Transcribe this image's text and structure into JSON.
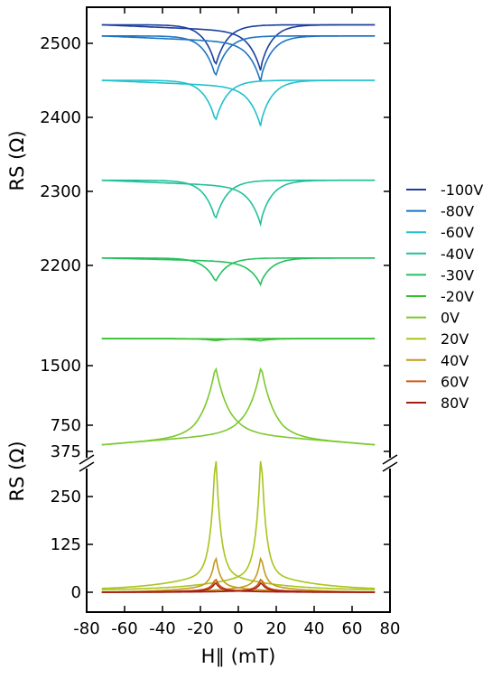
{
  "chart_data": {
    "type": "line",
    "xlabel": "H∥ (mT)",
    "xlim": [
      -80,
      80
    ],
    "x_ticks": [
      "-80",
      "-60",
      "-40",
      "-20",
      "0",
      "20",
      "40",
      "60",
      "80"
    ],
    "top_panel": {
      "ylabel": "RS (Ω)",
      "upper_segment": {
        "ylim": [
          2150,
          2550
        ],
        "ticks": [
          "2200",
          "2300",
          "2400",
          "2500"
        ]
      },
      "lower_segment": {
        "ylim": [
          375,
          1850
        ],
        "ticks": [
          "375",
          "750",
          "1500"
        ]
      }
    },
    "bottom_panel": {
      "ylabel": "RS (Ω)",
      "ylim": [
        -25,
        375
      ],
      "ticks": [
        "0",
        "125",
        "250"
      ]
    },
    "legend_position": "right",
    "series": [
      {
        "name": "-100V",
        "color": "#1c3f9e",
        "segment": "upper",
        "base": 2525,
        "min": 2470,
        "gap": 0
      },
      {
        "name": "-80V",
        "color": "#1f74c2",
        "segment": "upper",
        "base": 2510,
        "min": 2455,
        "gap": 0
      },
      {
        "name": "-60V",
        "color": "#22c0cc",
        "segment": "upper",
        "base": 2450,
        "min": 2395,
        "gap": 0
      },
      {
        "name": "-40V",
        "color": "#22c09a",
        "segment": "upper",
        "base": 2315,
        "min": 2262,
        "gap": 0
      },
      {
        "name": "-30V",
        "color": "#25c05e",
        "segment": "upper",
        "base": 2210,
        "min": 2178,
        "gap": 0
      },
      {
        "name": "-20V",
        "color": "#33bf2f",
        "segment": "lower",
        "base": 1840,
        "min": 1815,
        "gap": 0
      },
      {
        "name": "0V",
        "color": "#7bc92d",
        "segment": "lower",
        "base": 560,
        "min": 1510,
        "gap": 0
      },
      {
        "name": "20V",
        "color": "#a9c41c",
        "segment": "bottom",
        "base": 5,
        "min": 320,
        "gap": 0
      },
      {
        "name": "40V",
        "color": "#c39a1c",
        "segment": "bottom",
        "base": 0,
        "min": 75,
        "gap": 0
      },
      {
        "name": "60V",
        "color": "#cf5a16",
        "segment": "bottom",
        "base": 0,
        "min": 28,
        "gap": 0
      },
      {
        "name": "80V",
        "color": "#a3201a",
        "segment": "bottom",
        "base": 0,
        "min": 20,
        "gap": 0
      }
    ]
  }
}
